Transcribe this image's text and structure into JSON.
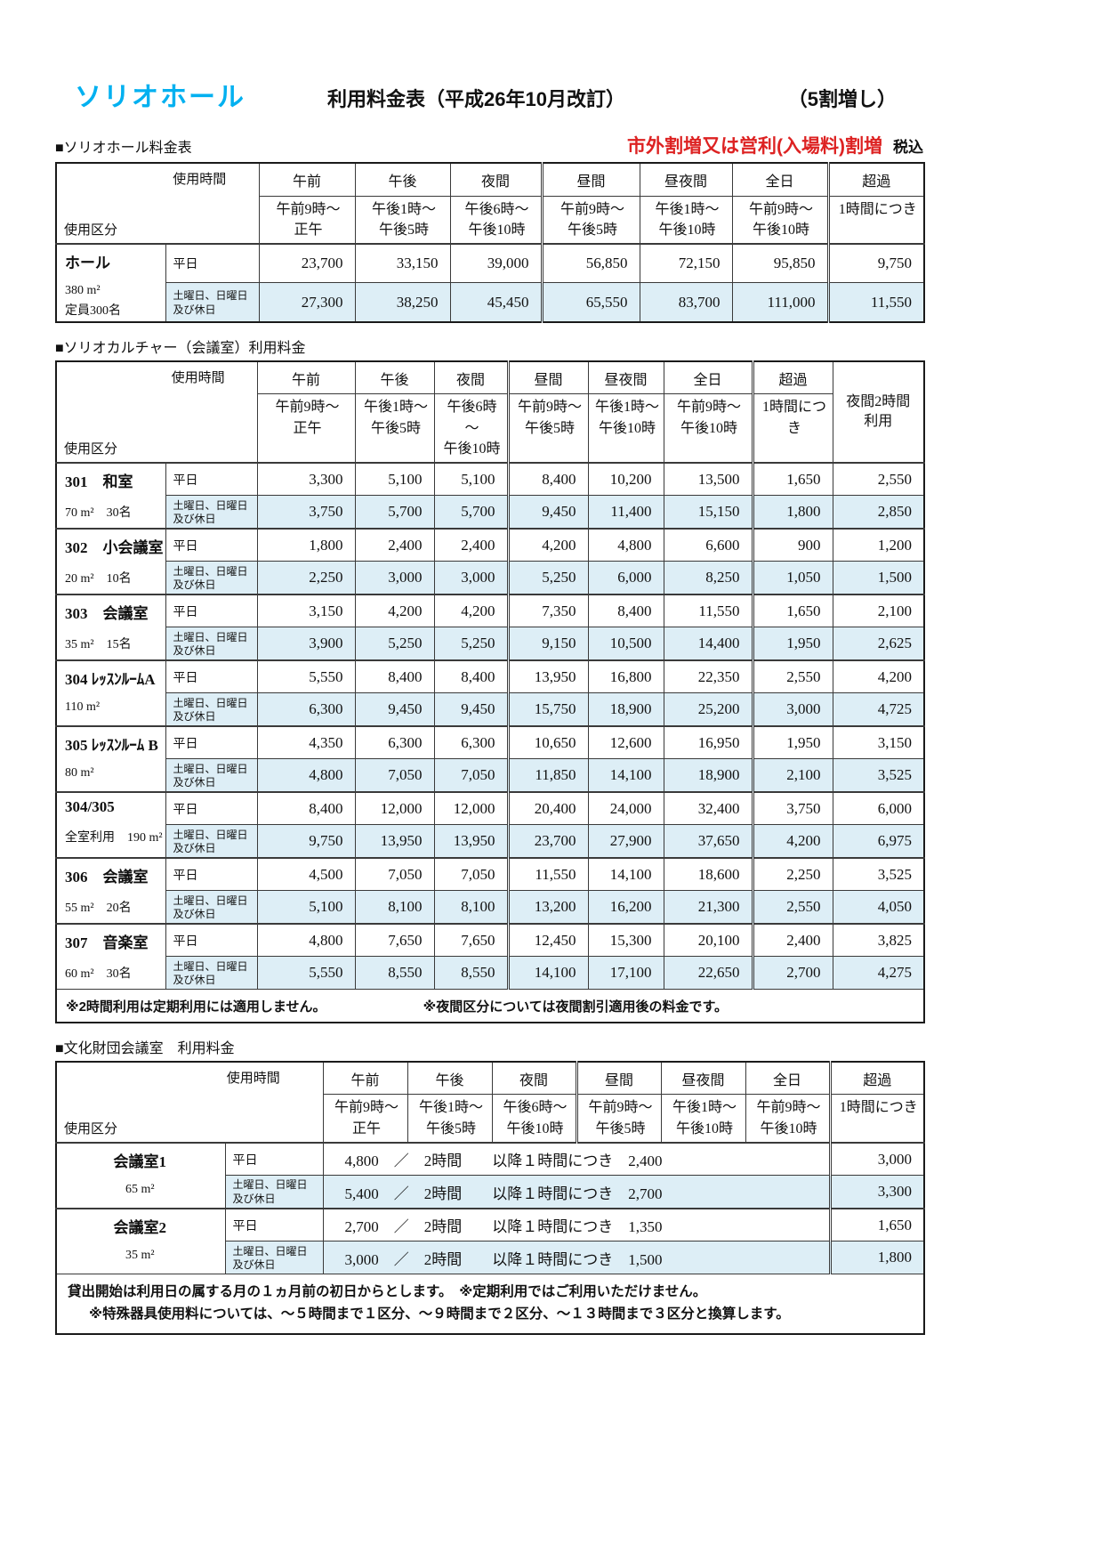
{
  "header": {
    "logo": "ソリオホール",
    "title": "利用料金表（平成26年10月改訂）",
    "rate_note": "（5割増し）",
    "red_note": "市外割増又は営利(入場料)割増",
    "tax_note": "税込"
  },
  "labels": {
    "usage_time": "使用時間",
    "usage_category": "使用区分",
    "weekday": "平日",
    "holiday": "土曜日、日曜日\n及び休日"
  },
  "colors": {
    "logo_cyan": "#00b0f0",
    "alert_red": "#dd2222",
    "row_highlight": "#ddeef6"
  },
  "time_columns": [
    {
      "label": "午前",
      "time": "午前9時～\n正午"
    },
    {
      "label": "午後",
      "time": "午後1時～\n午後5時"
    },
    {
      "label": "夜間",
      "time": "午後6時～\n午後10時"
    },
    {
      "label": "昼間",
      "time": "午前9時～\n午後5時"
    },
    {
      "label": "昼夜間",
      "time": "午後1時～\n午後10時"
    },
    {
      "label": "全日",
      "time": "午前9時～\n午後10時"
    },
    {
      "label": "超過",
      "time": "1時間につき"
    }
  ],
  "hall_table": {
    "section_title": "■ソリオホール料金表",
    "rows": [
      {
        "room": "ホール",
        "room_sub": [
          "380 m²",
          "定員300名"
        ],
        "weekday": [
          "23,700",
          "33,150",
          "39,000",
          "56,850",
          "72,150",
          "95,850",
          "9,750"
        ],
        "holiday": [
          "27,300",
          "38,250",
          "45,450",
          "65,550",
          "83,700",
          "111,000",
          "11,550"
        ]
      }
    ]
  },
  "culture_table": {
    "section_title": "■ソリオカルチャー（会議室）利用料金",
    "extra_column": "夜間2時間\n利用",
    "rows": [
      {
        "room": "301　和室",
        "room_sub": [
          "70 m²　30名"
        ],
        "weekday": [
          "3,300",
          "5,100",
          "5,100",
          "8,400",
          "10,200",
          "13,500",
          "1,650",
          "2,550"
        ],
        "holiday": [
          "3,750",
          "5,700",
          "5,700",
          "9,450",
          "11,400",
          "15,150",
          "1,800",
          "2,850"
        ]
      },
      {
        "room": "302　小会議室",
        "room_sub": [
          "20 m²　10名"
        ],
        "weekday": [
          "1,800",
          "2,400",
          "2,400",
          "4,200",
          "4,800",
          "6,600",
          "900",
          "1,200"
        ],
        "holiday": [
          "2,250",
          "3,000",
          "3,000",
          "5,250",
          "6,000",
          "8,250",
          "1,050",
          "1,500"
        ]
      },
      {
        "room": "303　会議室",
        "room_sub": [
          "35 m²　15名"
        ],
        "weekday": [
          "3,150",
          "4,200",
          "4,200",
          "7,350",
          "8,400",
          "11,550",
          "1,650",
          "2,100"
        ],
        "holiday": [
          "3,900",
          "5,250",
          "5,250",
          "9,150",
          "10,500",
          "14,400",
          "1,950",
          "2,625"
        ]
      },
      {
        "room": "304 ﾚｯｽﾝﾙｰﾑA",
        "room_sub": [
          "110 m²"
        ],
        "weekday": [
          "5,550",
          "8,400",
          "8,400",
          "13,950",
          "16,800",
          "22,350",
          "2,550",
          "4,200"
        ],
        "holiday": [
          "6,300",
          "9,450",
          "9,450",
          "15,750",
          "18,900",
          "25,200",
          "3,000",
          "4,725"
        ]
      },
      {
        "room": "305 ﾚｯｽﾝﾙｰﾑ B",
        "room_sub": [
          "80 m²"
        ],
        "weekday": [
          "4,350",
          "6,300",
          "6,300",
          "10,650",
          "12,600",
          "16,950",
          "1,950",
          "3,150"
        ],
        "holiday": [
          "4,800",
          "7,050",
          "7,050",
          "11,850",
          "14,100",
          "18,900",
          "2,100",
          "3,525"
        ]
      },
      {
        "room": "304/305",
        "room_sub": [
          "全室利用　190 m²"
        ],
        "weekday": [
          "8,400",
          "12,000",
          "12,000",
          "20,400",
          "24,000",
          "32,400",
          "3,750",
          "6,000"
        ],
        "holiday": [
          "9,750",
          "13,950",
          "13,950",
          "23,700",
          "27,900",
          "37,650",
          "4,200",
          "6,975"
        ]
      },
      {
        "room": "306　会議室",
        "room_sub": [
          "55 m²　20名"
        ],
        "weekday": [
          "4,500",
          "7,050",
          "7,050",
          "11,550",
          "14,100",
          "18,600",
          "2,250",
          "3,525"
        ],
        "holiday": [
          "5,100",
          "8,100",
          "8,100",
          "13,200",
          "16,200",
          "21,300",
          "2,550",
          "4,050"
        ]
      },
      {
        "room": "307　音楽室",
        "room_sub": [
          "60 m²　30名"
        ],
        "weekday": [
          "4,800",
          "7,650",
          "7,650",
          "12,450",
          "15,300",
          "20,100",
          "2,400",
          "3,825"
        ],
        "holiday": [
          "5,550",
          "8,550",
          "8,550",
          "14,100",
          "17,100",
          "22,650",
          "2,700",
          "4,275"
        ]
      }
    ],
    "notes": [
      "※2時間利用は定期利用には適用しません。",
      "※夜間区分については夜間割引適用後の料金です。"
    ]
  },
  "foundation_table": {
    "section_title": "■文化財団会議室　利用料金",
    "rows": [
      {
        "room": "会議室1",
        "room_sub": "65 m²",
        "weekday_text": "4,800　／　2時間　　以降１時間につき　2,400",
        "weekday_over": "3,000",
        "holiday_text": "5,400　／　2時間　　以降１時間につき　2,700",
        "holiday_over": "3,300"
      },
      {
        "room": "会議室2",
        "room_sub": "35 m²",
        "weekday_text": "2,700　／　2時間　　以降１時間につき　1,350",
        "weekday_over": "1,650",
        "holiday_text": "3,000　／　2時間　　以降１時間につき　1,500",
        "holiday_over": "1,800"
      }
    ],
    "notes": [
      "貸出開始は利用日の属する月の１ヵ月前の初日からとします。　※定期利用ではご利用いただけません。",
      "※特殊器具使用料については、～５時間まで１区分、～９時間まで２区分、～１３時間まで３区分と換算します。"
    ]
  }
}
